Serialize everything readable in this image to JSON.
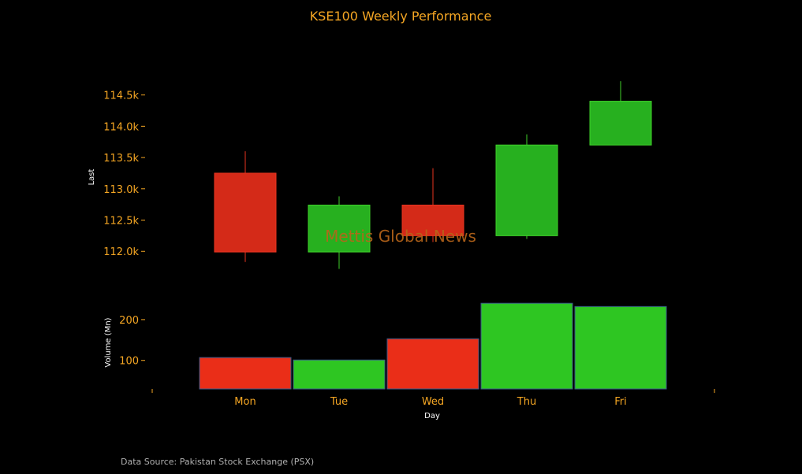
{
  "colors": {
    "background": "#000000",
    "accent": "#f5a623",
    "up_body": "#27b01f",
    "up_wick": "#3fd02a",
    "down_body": "#d42a18",
    "down_wick": "#e83420",
    "vol_up": "#2ec622",
    "vol_down": "#ea2e18",
    "label_white": "#ffffff",
    "watermark": "#b8651a",
    "source_text": "#b0b0b0"
  },
  "chart_data": {
    "type": "candlestick",
    "title": "KSE100 Weekly Performance",
    "xlabel": "Day",
    "categories": [
      "Mon",
      "Tue",
      "Wed",
      "Thu",
      "Fri"
    ],
    "price": {
      "ylabel": "Last",
      "ylim": [
        111550,
        115200
      ],
      "ticks": [
        112000,
        112500,
        113000,
        113500,
        114000,
        114500
      ],
      "tick_labels": [
        "112.0k",
        "112.5k",
        "113.0k",
        "113.5k",
        "114.0k",
        "114.5k"
      ],
      "ohlc": [
        {
          "day": "Mon",
          "open": 113250,
          "high": 113600,
          "low": 111830,
          "close": 111990
        },
        {
          "day": "Tue",
          "open": 111990,
          "high": 112880,
          "low": 111720,
          "close": 112740
        },
        {
          "day": "Wed",
          "open": 112740,
          "high": 113330,
          "low": 112150,
          "close": 112250
        },
        {
          "day": "Thu",
          "open": 112250,
          "high": 113870,
          "low": 112200,
          "close": 113700
        },
        {
          "day": "Fri",
          "open": 113700,
          "high": 114720,
          "low": 113700,
          "close": 114400
        }
      ]
    },
    "volume": {
      "ylabel": "Volume (Mn)",
      "ylim": [
        30,
        250
      ],
      "ticks": [
        100,
        200
      ],
      "tick_labels": [
        "100",
        "200"
      ],
      "values": [
        {
          "day": "Mon",
          "value": 107,
          "direction": "down"
        },
        {
          "day": "Tue",
          "value": 101,
          "direction": "up"
        },
        {
          "day": "Wed",
          "value": 153,
          "direction": "down"
        },
        {
          "day": "Thu",
          "value": 240,
          "direction": "up"
        },
        {
          "day": "Fri",
          "value": 232,
          "direction": "up"
        }
      ]
    },
    "watermark": "Mettis Global News",
    "source": "Data Source: Pakistan Stock Exchange (PSX)",
    "grid": false
  }
}
